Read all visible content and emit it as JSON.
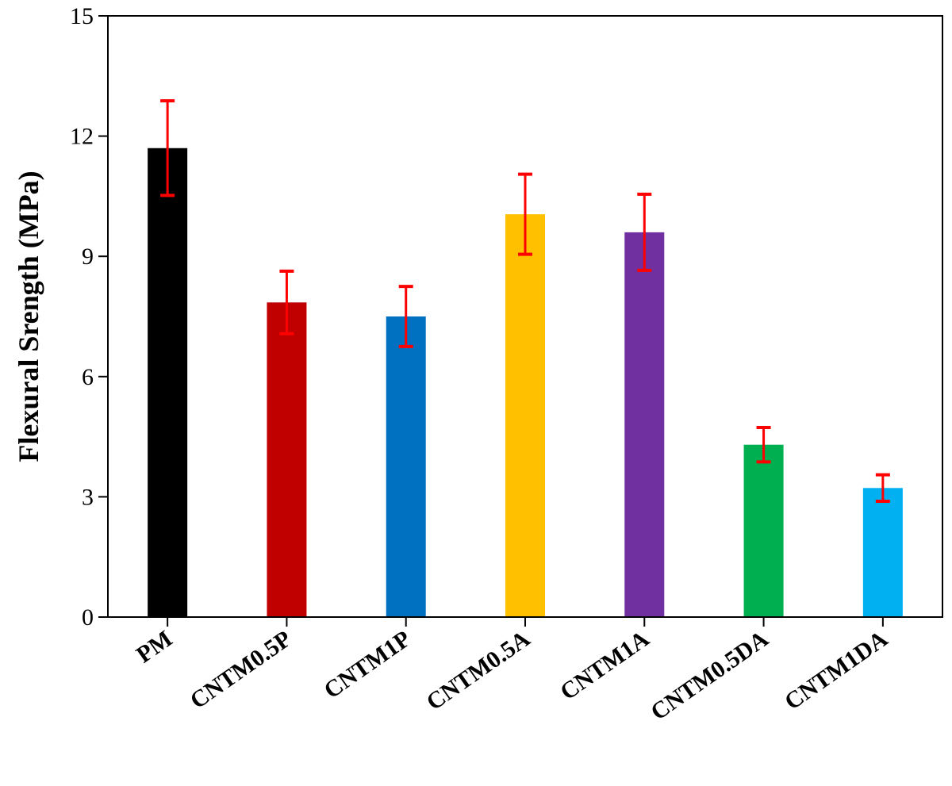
{
  "chart_data": {
    "type": "bar",
    "title": "",
    "xlabel": "",
    "ylabel": "Flexural Srength (MPa)",
    "ylim": [
      0,
      15
    ],
    "yticks": [
      0,
      3,
      6,
      9,
      12,
      15
    ],
    "grid": false,
    "legend": "none",
    "error_bar_color": "#ff0000",
    "categories": [
      "PM",
      "CNTM0.5P",
      "CNTM1P",
      "CNTM0.5A",
      "CNTM1A",
      "CNTM0.5DA",
      "CNTM1DA"
    ],
    "values": [
      11.7,
      7.85,
      7.5,
      10.05,
      9.6,
      4.3,
      3.22
    ],
    "errors": [
      1.18,
      0.78,
      0.75,
      1.0,
      0.95,
      0.43,
      0.33
    ],
    "colors": [
      "#000000",
      "#c00000",
      "#0070c0",
      "#ffc000",
      "#7030a0",
      "#00b050",
      "#00b0f0"
    ]
  }
}
